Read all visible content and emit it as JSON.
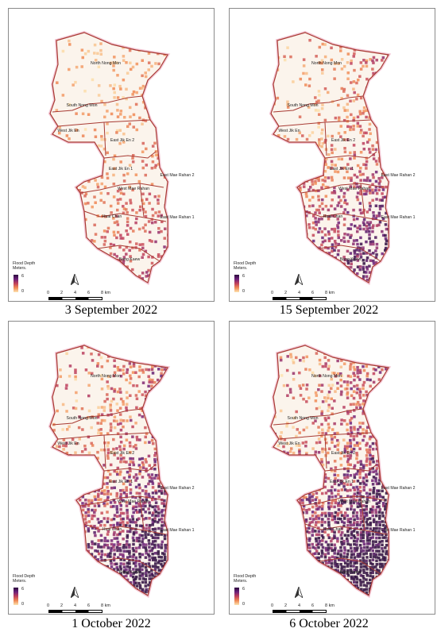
{
  "legend": {
    "title_line1": "Flood Depth",
    "title_line2": "Meters.",
    "max": "6",
    "min": "0"
  },
  "scale": {
    "ticks": [
      "0",
      "2",
      "4",
      "6",
      "8 km"
    ]
  },
  "districts": {
    "north_nong_mon": "North Nong Mon",
    "south_nong_mon": "South Nong Mon",
    "west_jik_en": "West Jik En",
    "east_jik_en_2": "East Jik En 2",
    "east_jik_en_1": "East Jik En 1",
    "east_mae_rahan_2": "East Mae Rahan 2",
    "west_mae_rahan": "West Mae Rahan",
    "huai_chan": "Huai Chan",
    "east_mae_rahan_1": "East Mae Rahan 1",
    "bang_kaew": "Bang Kaew"
  },
  "panels": [
    {
      "caption": "3 September 2022",
      "flood_level": 0.15
    },
    {
      "caption": "15 September 2022",
      "flood_level": 0.45
    },
    {
      "caption": "1 October 2022",
      "flood_level": 0.7
    },
    {
      "caption": "6 October 2022",
      "flood_level": 0.85
    }
  ],
  "colors": {
    "boundary": "#a83a33",
    "deep": "#2b0a3d",
    "mid": "#c0405c",
    "shallow": "#f7c08a"
  }
}
